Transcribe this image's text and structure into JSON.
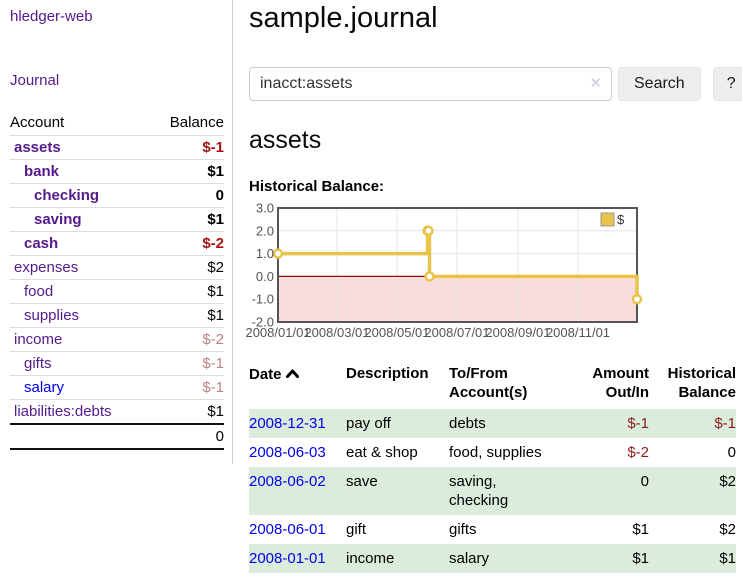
{
  "colors": {
    "purple": "#551a8b",
    "blue": "#0000ee",
    "neg_strong": "#a31414",
    "neg_soft": "#bf8484",
    "neg": "#8b1f1f",
    "row_green": "#dcecdc",
    "chart_yellow": "#e9c34a",
    "chart_pink": "#fadcdc",
    "zero_line": "#8b0000",
    "grid": "#e4e4e4",
    "chart_border": "#555555"
  },
  "sidebar": {
    "brand": "hledger-web",
    "journal_link": "Journal",
    "accounts_table": {
      "headers": {
        "account": "Account",
        "balance": "Balance"
      },
      "rows": [
        {
          "name": "assets",
          "depth": 1,
          "bold": true,
          "link": "purple",
          "balance": "$-1",
          "balance_class": "neg-strong"
        },
        {
          "name": "bank",
          "depth": 2,
          "bold": true,
          "link": "purple",
          "balance": "$1",
          "balance_class": ""
        },
        {
          "name": "checking",
          "depth": 3,
          "bold": true,
          "link": "purple",
          "balance": "0",
          "balance_class": ""
        },
        {
          "name": "saving",
          "depth": 3,
          "bold": true,
          "link": "purple",
          "balance": "$1",
          "balance_class": ""
        },
        {
          "name": "cash",
          "depth": 2,
          "bold": true,
          "link": "purple",
          "balance": "$-2",
          "balance_class": "neg-strong"
        },
        {
          "name": "expenses",
          "depth": 1,
          "bold": false,
          "link": "purple",
          "balance": "$2",
          "balance_class": ""
        },
        {
          "name": "food",
          "depth": 2,
          "bold": false,
          "link": "purple",
          "balance": "$1",
          "balance_class": ""
        },
        {
          "name": "supplies",
          "depth": 2,
          "bold": false,
          "link": "purple",
          "balance": "$1",
          "balance_class": ""
        },
        {
          "name": "income",
          "depth": 1,
          "bold": false,
          "link": "purple",
          "balance": "$-2",
          "balance_class": "neg-soft"
        },
        {
          "name": "gifts",
          "depth": 2,
          "bold": false,
          "link": "purple",
          "balance": "$-1",
          "balance_class": "neg-soft"
        },
        {
          "name": "salary",
          "depth": 2,
          "bold": false,
          "link": "blue",
          "balance": "$-1",
          "balance_class": "neg-soft"
        },
        {
          "name": "liabilities:debts",
          "depth": 1,
          "bold": false,
          "link": "purple",
          "balance": "$1",
          "balance_class": ""
        }
      ],
      "total": "0"
    }
  },
  "header": {
    "title": "sample.journal"
  },
  "search": {
    "value": "inacct:assets",
    "clear_icon": "✕",
    "search_label": "Search",
    "help_label": "?"
  },
  "account_page": {
    "heading": "assets",
    "chart_label": "Historical Balance:"
  },
  "chart_data": {
    "type": "line",
    "title": "Historical Balance:",
    "step": true,
    "series": [
      {
        "name": "$",
        "points": [
          [
            "2008/01/01",
            1.0
          ],
          [
            "2008/06/01",
            2.0
          ],
          [
            "2008/06/02",
            2.0
          ],
          [
            "2008/06/03",
            0.0
          ],
          [
            "2008/12/31",
            -1.0
          ]
        ]
      }
    ],
    "x_ticks": [
      "2008/01/01",
      "2008/03/01",
      "2008/05/01",
      "2008/07/01",
      "2008/09/01",
      "2008/11/01"
    ],
    "y_ticks": [
      "3.0",
      "2.0",
      "1.0",
      "0.0",
      "-1.0",
      "-2.0"
    ],
    "ylim": [
      -2,
      3
    ],
    "xlim": [
      "2008/01/01",
      "2008/12/31"
    ],
    "grid": true,
    "negative_region_shaded": true,
    "legend": {
      "label": "$",
      "position": "top-right"
    }
  },
  "register": {
    "headers": {
      "date": "Date",
      "description": "Description",
      "accounts": [
        "To/From",
        "Account(s)"
      ],
      "amount": [
        "Amount",
        "Out/In"
      ],
      "balance": [
        "Historical",
        "Balance"
      ]
    },
    "rows": [
      {
        "date": "2008-12-31",
        "description": "pay off",
        "accounts": "debts",
        "amount": "$-1",
        "amount_negative": true,
        "balance": "$-1",
        "balance_negative": true
      },
      {
        "date": "2008-06-03",
        "description": "eat & shop",
        "accounts": "food, supplies",
        "amount": "$-2",
        "amount_negative": true,
        "balance": "0",
        "balance_negative": false
      },
      {
        "date": "2008-06-02",
        "description": "save",
        "accounts": "saving, checking",
        "amount": "0",
        "amount_negative": false,
        "balance": "$2",
        "balance_negative": false
      },
      {
        "date": "2008-06-01",
        "description": "gift",
        "accounts": "gifts",
        "amount": "$1",
        "amount_negative": false,
        "balance": "$2",
        "balance_negative": false
      },
      {
        "date": "2008-01-01",
        "description": "income",
        "accounts": "salary",
        "amount": "$1",
        "amount_negative": false,
        "balance": "$1",
        "balance_negative": false
      }
    ]
  }
}
